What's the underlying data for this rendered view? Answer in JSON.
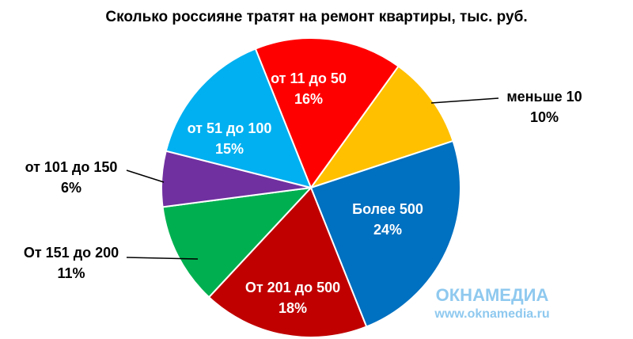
{
  "chart_data": {
    "type": "pie",
    "title": "Сколько россияне тратят на ремонт квартиры, тыс. руб.",
    "categories": [
      "от 11 до 50",
      "меньше 10",
      "Более 500",
      "От 201 до 500",
      "От 151 до 200",
      "от 101 до 150",
      "от 51 до 100"
    ],
    "values": [
      16,
      10,
      24,
      18,
      11,
      6,
      15
    ],
    "value_labels": [
      "16%",
      "10%",
      "24%",
      "18%",
      "11%",
      "6%",
      "15%"
    ],
    "colors": [
      "#ff0000",
      "#ffc000",
      "#0070c0",
      "#c00000",
      "#00b050",
      "#7030a0",
      "#00b0f0"
    ]
  },
  "watermark": {
    "brand": "ОКНАМЕДИА",
    "url": "www.oknamedia.ru"
  }
}
